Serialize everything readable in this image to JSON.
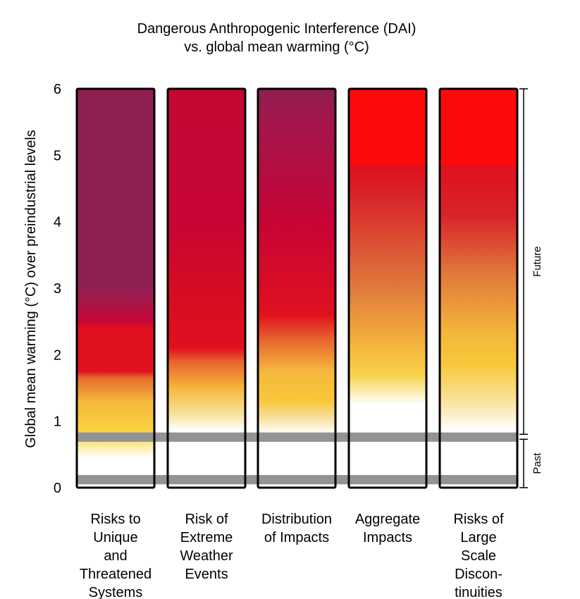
{
  "chart_data": {
    "type": "heatmap",
    "title": "Dangerous Anthropogenic Interference (DAI)",
    "subtitle": "vs. global mean warming (°C)",
    "ylabel": "Global mean warming (°C) over preindustrial levels",
    "xlabel": "",
    "ylim": [
      0,
      6
    ],
    "yticks": [
      "0",
      "1",
      "2",
      "3",
      "4",
      "5",
      "6"
    ],
    "periods": [
      {
        "label": "Past",
        "range": [
          0,
          0.76
        ]
      },
      {
        "label": "Future",
        "range": [
          0.76,
          6
        ]
      }
    ],
    "reference_bands": [
      {
        "y": 0.12,
        "thickness": 0.14,
        "color": "#939393"
      },
      {
        "y": 0.76,
        "thickness": 0.14,
        "color": "#939393"
      }
    ],
    "categories": [
      "Risks to Unique and Threatened Systems",
      "Risk of Extreme Weather Events",
      "Distribution of Impacts",
      "Aggregate Impacts",
      "Risks of Large Scale Discontinuities"
    ],
    "category_label_lines": [
      [
        "Risks to",
        "Unique",
        "and",
        "Threatened",
        "Systems"
      ],
      [
        "Risk of",
        "Extreme",
        "Weather",
        "Events"
      ],
      [
        "Distribution",
        "of Impacts"
      ],
      [
        "Aggregate",
        "Impacts"
      ],
      [
        "Risks of",
        "Large",
        "Scale",
        "Discon-",
        "tinuities"
      ]
    ],
    "color_scale": {
      "white": "#ffffff",
      "yellow": "#f9c93a",
      "orange": "#e57a3c",
      "red": "#e0101e",
      "crimson": "#c60536",
      "purple": "#8f1e52",
      "bright_red": "#ff0a0a"
    },
    "gradients": [
      [
        [
          0,
          "#ffffff"
        ],
        [
          0.45,
          "#ffffff"
        ],
        [
          0.8,
          "#fbd642"
        ],
        [
          1.3,
          "#f5b73c"
        ],
        [
          1.65,
          "#e86a2f"
        ],
        [
          1.75,
          "#e0101e"
        ],
        [
          2.4,
          "#e0101e"
        ],
        [
          2.5,
          "#c60536"
        ],
        [
          2.9,
          "#9c1d4f"
        ],
        [
          3.0,
          "#8f1e52"
        ],
        [
          6,
          "#8f1e52"
        ]
      ],
      [
        [
          0,
          "#ffffff"
        ],
        [
          0.85,
          "#ffffff"
        ],
        [
          1.1,
          "#f8e3a0"
        ],
        [
          1.5,
          "#f5b73c"
        ],
        [
          1.9,
          "#e8612f"
        ],
        [
          2.1,
          "#e0101e"
        ],
        [
          3.0,
          "#d50c22"
        ],
        [
          4.0,
          "#c60536"
        ],
        [
          6,
          "#c30632"
        ]
      ],
      [
        [
          0,
          "#ffffff"
        ],
        [
          0.8,
          "#ffffff"
        ],
        [
          1.05,
          "#f8dfa0"
        ],
        [
          1.3,
          "#f8c83a"
        ],
        [
          1.75,
          "#f5b73c"
        ],
        [
          2.2,
          "#e86a2f"
        ],
        [
          2.6,
          "#e0101e"
        ],
        [
          4.0,
          "#c60536"
        ],
        [
          5.5,
          "#a3164c"
        ],
        [
          6,
          "#8f1e52"
        ]
      ],
      [
        [
          0,
          "#ffffff"
        ],
        [
          1.25,
          "#ffffff"
        ],
        [
          1.7,
          "#f8d24a"
        ],
        [
          2.1,
          "#f5b73c"
        ],
        [
          3.0,
          "#e07a3c"
        ],
        [
          4.4,
          "#d8232a"
        ],
        [
          4.85,
          "#e0101e"
        ],
        [
          4.86,
          "#ff0a0a"
        ],
        [
          6,
          "#ff0a0a"
        ]
      ],
      [
        [
          0,
          "#ffffff"
        ],
        [
          0.85,
          "#ffffff"
        ],
        [
          1.4,
          "#f8dd8a"
        ],
        [
          1.85,
          "#f8c83a"
        ],
        [
          2.3,
          "#f5b73c"
        ],
        [
          3.2,
          "#e07a3c"
        ],
        [
          4.1,
          "#d8232a"
        ],
        [
          4.85,
          "#e0101e"
        ],
        [
          4.86,
          "#ff0a0a"
        ],
        [
          6,
          "#ff0a0a"
        ]
      ]
    ]
  }
}
